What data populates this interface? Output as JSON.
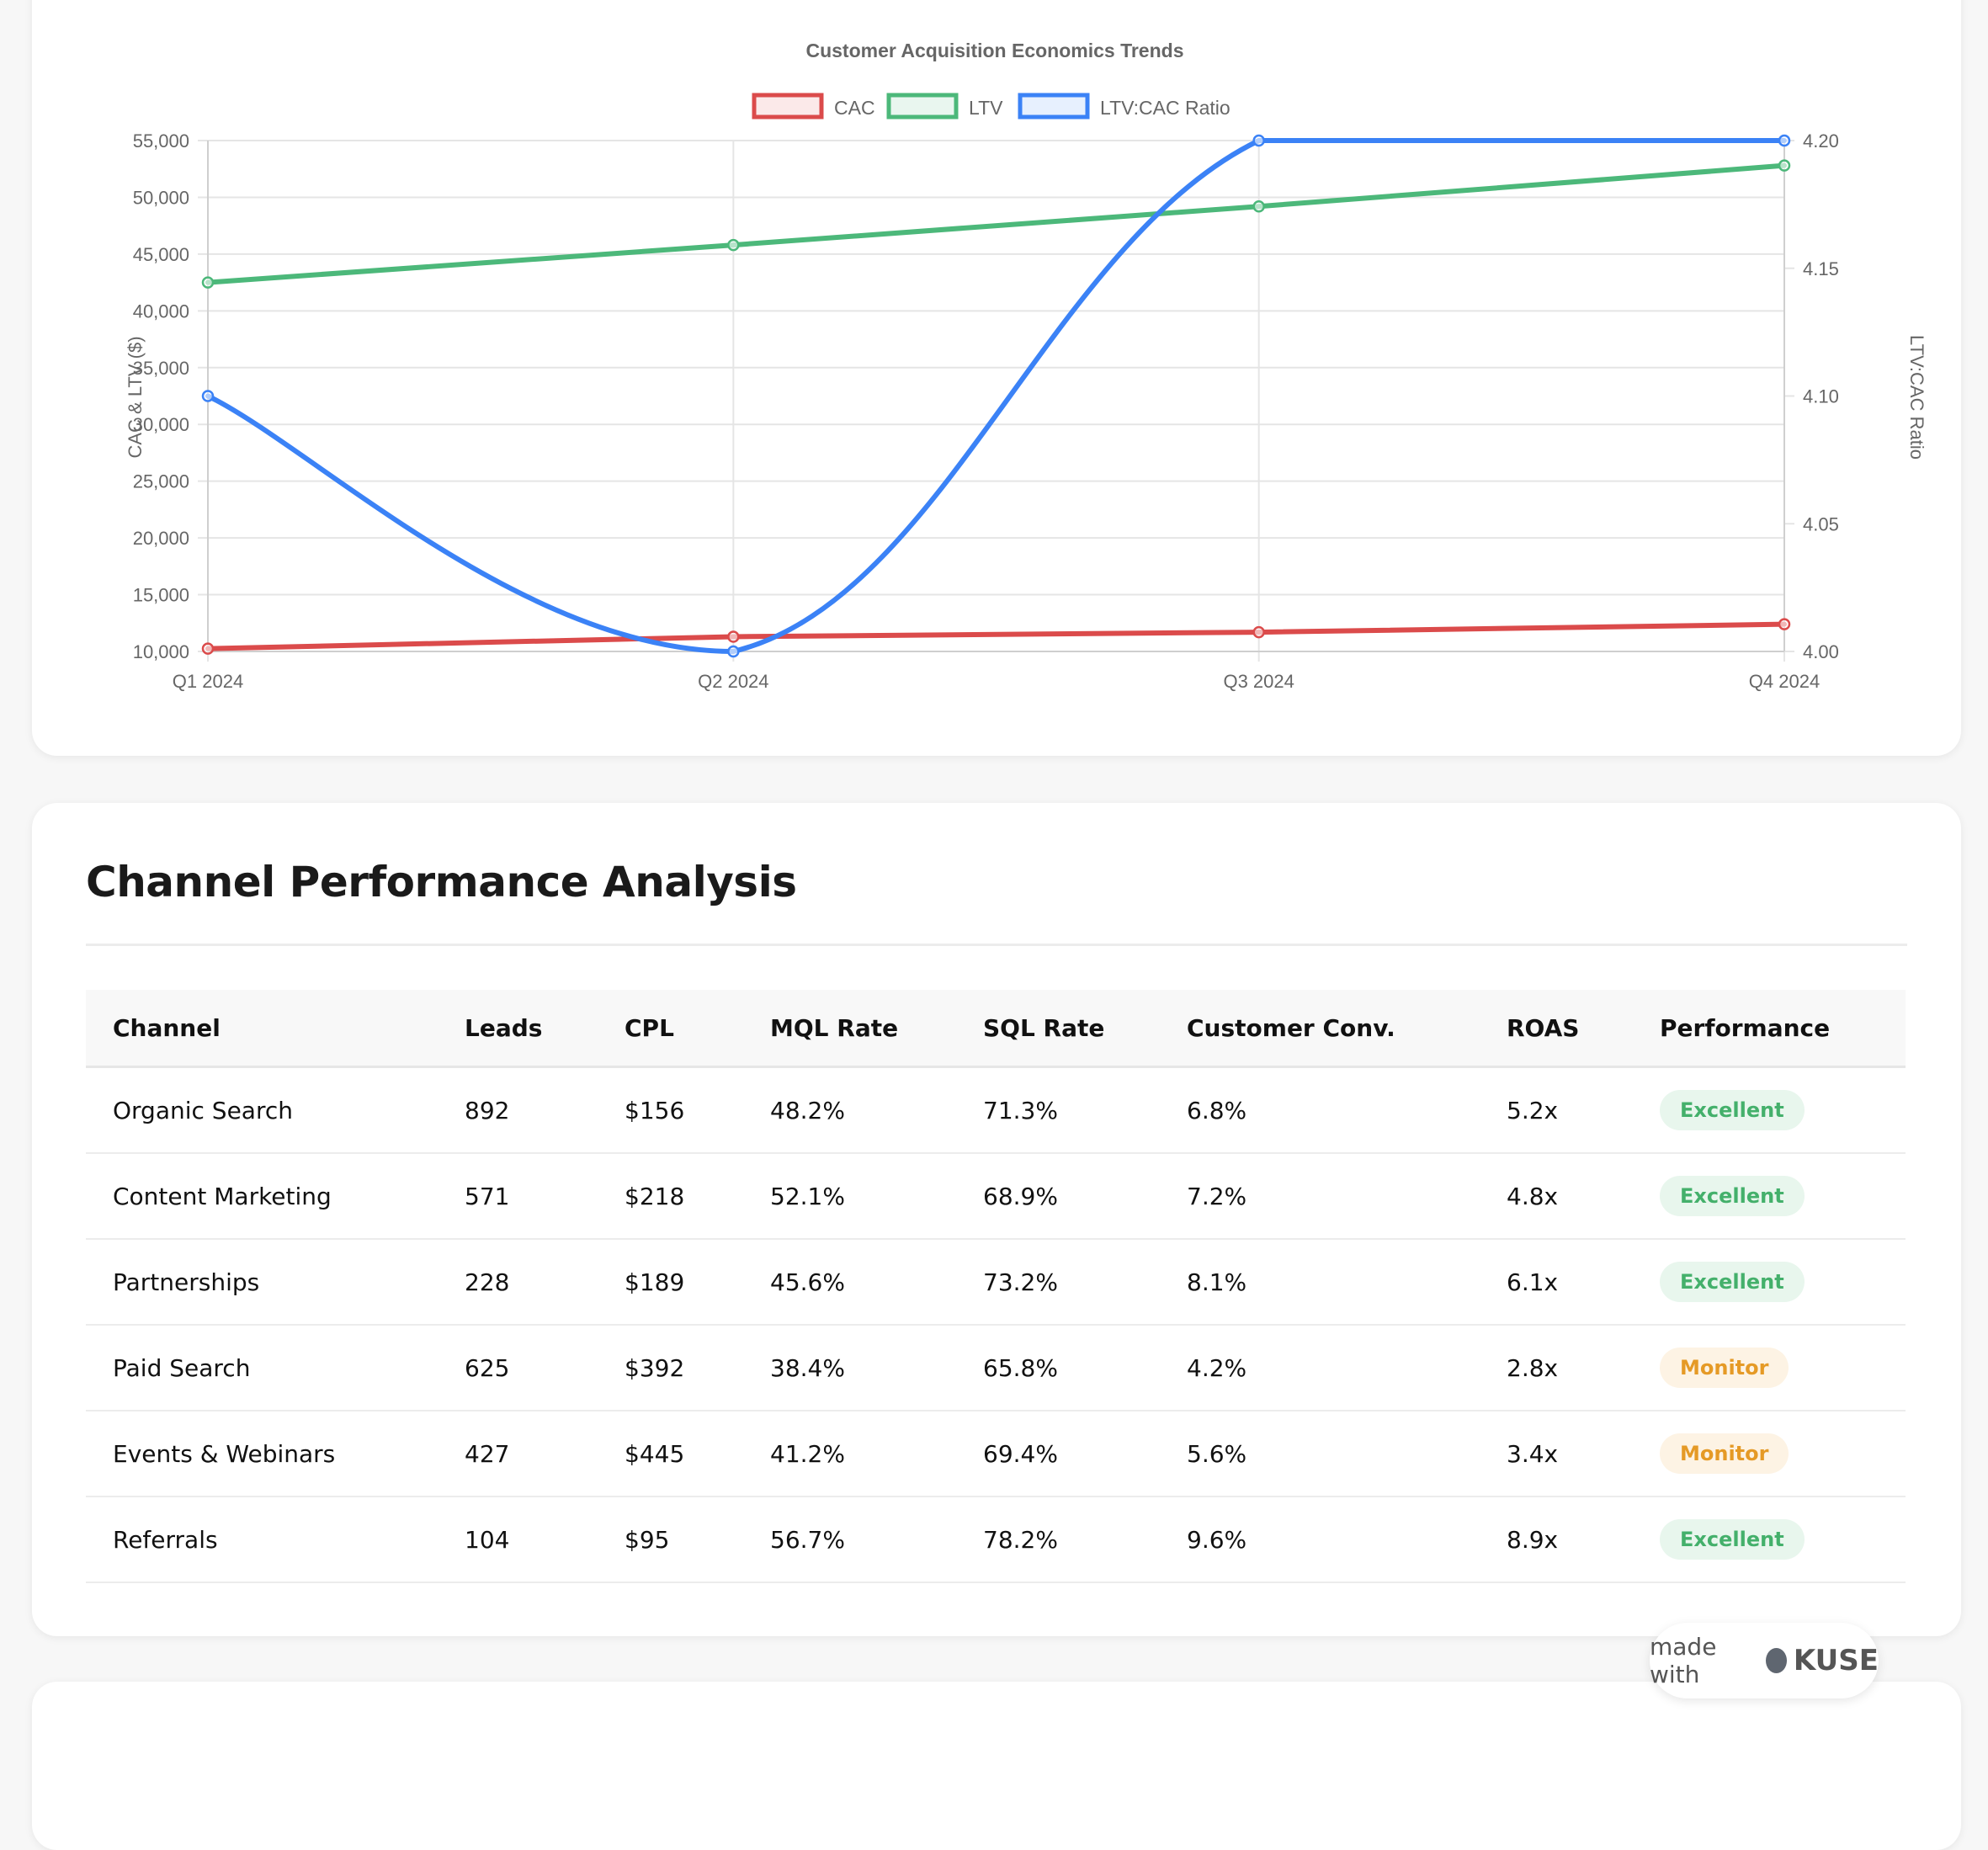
{
  "chart_data": {
    "type": "line",
    "title": "Customer Acquisition Economics Trends",
    "categories": [
      "Q1 2024",
      "Q2 2024",
      "Q3 2024",
      "Q4 2024"
    ],
    "series": [
      {
        "name": "CAC",
        "axis": "left",
        "color": "#db4b4b",
        "values": [
          10250,
          11300,
          11700,
          12400
        ]
      },
      {
        "name": "LTV",
        "axis": "left",
        "color": "#4cb87a",
        "values": [
          42500,
          45800,
          49200,
          52800
        ]
      },
      {
        "name": "LTV:CAC Ratio",
        "axis": "right",
        "color": "#3b82f6",
        "values": [
          4.1,
          4.0,
          4.2,
          4.2
        ]
      }
    ],
    "y_left": {
      "label": "CAC & LTV ($)",
      "min": 10000,
      "max": 55000,
      "ticks": [
        "10,000",
        "15,000",
        "20,000",
        "25,000",
        "30,000",
        "35,000",
        "40,000",
        "45,000",
        "50,000",
        "55,000"
      ]
    },
    "y_right": {
      "label": "LTV:CAC Ratio",
      "min": 4.0,
      "max": 4.2,
      "ticks": [
        "4.00",
        "4.05",
        "4.10",
        "4.15",
        "4.20"
      ]
    },
    "legend": "top",
    "grid": true
  },
  "section": {
    "title": "Channel Performance Analysis",
    "columns": [
      "Channel",
      "Leads",
      "CPL",
      "MQL Rate",
      "SQL Rate",
      "Customer Conv.",
      "ROAS",
      "Performance"
    ],
    "rows": [
      {
        "channel": "Organic Search",
        "leads": "892",
        "cpl": "$156",
        "mql": "48.2%",
        "sql": "71.3%",
        "conv": "6.8%",
        "roas": "5.2x",
        "performance": "Excellent",
        "status": "excellent"
      },
      {
        "channel": "Content Marketing",
        "leads": "571",
        "cpl": "$218",
        "mql": "52.1%",
        "sql": "68.9%",
        "conv": "7.2%",
        "roas": "4.8x",
        "performance": "Excellent",
        "status": "excellent"
      },
      {
        "channel": "Partnerships",
        "leads": "228",
        "cpl": "$189",
        "mql": "45.6%",
        "sql": "73.2%",
        "conv": "8.1%",
        "roas": "6.1x",
        "performance": "Excellent",
        "status": "excellent"
      },
      {
        "channel": "Paid Search",
        "leads": "625",
        "cpl": "$392",
        "mql": "38.4%",
        "sql": "65.8%",
        "conv": "4.2%",
        "roas": "2.8x",
        "performance": "Monitor",
        "status": "monitor"
      },
      {
        "channel": "Events & Webinars",
        "leads": "427",
        "cpl": "$445",
        "mql": "41.2%",
        "sql": "69.4%",
        "conv": "5.6%",
        "roas": "3.4x",
        "performance": "Monitor",
        "status": "monitor"
      },
      {
        "channel": "Referrals",
        "leads": "104",
        "cpl": "$95",
        "mql": "56.7%",
        "sql": "78.2%",
        "conv": "9.6%",
        "roas": "8.9x",
        "performance": "Excellent",
        "status": "excellent"
      }
    ]
  },
  "badge": {
    "made_with": "made with",
    "brand": "KUSE"
  }
}
